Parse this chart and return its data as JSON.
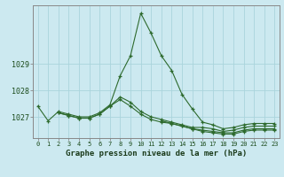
{
  "x": [
    0,
    1,
    2,
    3,
    4,
    5,
    6,
    7,
    8,
    9,
    10,
    11,
    12,
    13,
    14,
    15,
    16,
    17,
    18,
    19,
    20,
    21,
    22,
    23
  ],
  "line1": [
    1027.4,
    1026.85,
    1027.2,
    1027.1,
    1027.0,
    1027.0,
    1027.15,
    1027.45,
    1028.55,
    1029.3,
    1030.9,
    1030.15,
    1029.3,
    1028.75,
    1027.85,
    1027.3,
    1026.8,
    1026.7,
    1026.55,
    1026.6,
    1026.7,
    1026.75,
    1026.75,
    1026.75
  ],
  "line2": [
    null,
    null,
    1027.15,
    1027.05,
    1026.95,
    1026.95,
    1027.1,
    1027.4,
    1027.75,
    1027.55,
    1027.2,
    1027.0,
    1026.9,
    1026.8,
    1026.7,
    1026.6,
    1026.6,
    1026.55,
    1026.45,
    1026.5,
    1026.6,
    1026.65,
    1026.65,
    1026.65
  ],
  "line3": [
    null,
    null,
    1027.15,
    1027.05,
    1026.95,
    1026.95,
    1027.1,
    1027.4,
    1027.65,
    1027.4,
    1027.1,
    1026.9,
    1026.8,
    1026.75,
    1026.65,
    1026.55,
    1026.5,
    1026.45,
    1026.4,
    1026.4,
    1026.5,
    1026.55,
    1026.55,
    1026.55
  ],
  "line4": [
    null,
    null,
    null,
    null,
    null,
    null,
    null,
    null,
    null,
    null,
    null,
    null,
    1026.85,
    1026.75,
    1026.65,
    1026.55,
    1026.45,
    1026.4,
    1026.35,
    1026.35,
    1026.45,
    1026.5,
    1026.5,
    1026.5
  ],
  "ylim": [
    1026.2,
    1031.2
  ],
  "yticks": [
    1027,
    1028,
    1029
  ],
  "xlabel": "Graphe pression niveau de la mer (hPa)",
  "line_color": "#2d6a2d",
  "bg_color": "#cce9f0",
  "grid_color": "#aad4dc",
  "axis_color": "#808080"
}
